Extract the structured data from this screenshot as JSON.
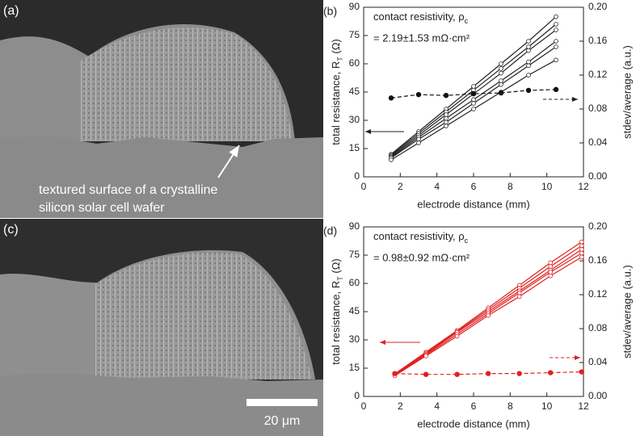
{
  "panels": [
    {
      "label": "(a)",
      "caption": [
        "textured surface of a crystalline",
        "silicon solar cell wafer"
      ]
    },
    {
      "label": "(c)",
      "scale_bar": "20 μm"
    }
  ],
  "chart_data": [
    {
      "type": "line",
      "label": "(b)",
      "annotation": [
        "contact resistivity, ρ",
        "c"
      ],
      "annotation2": "= 2.19±1.53 mΩ·cm²",
      "xlabel": "electrode distance (mm)",
      "ylabel": [
        "total resistance, R",
        "T",
        " (Ω)"
      ],
      "y2label": "stdev/average (a.u.)",
      "xlim": [
        0,
        12
      ],
      "xticks": [
        0,
        2,
        4,
        6,
        8,
        10,
        12
      ],
      "ylim": [
        0,
        90
      ],
      "yticks": [
        0,
        15,
        30,
        45,
        60,
        75,
        90
      ],
      "y2lim": [
        0,
        0.2
      ],
      "y2ticks": [
        {
          "value": 0,
          "label": "0.00"
        },
        {
          "value": 0.04,
          "label": "0.04"
        },
        {
          "value": 0.08,
          "label": "0.08"
        },
        {
          "value": 0.12,
          "label": "0.12"
        },
        {
          "value": 0.16,
          "label": "0.16"
        },
        {
          "value": 0.2,
          "label": "0.20"
        }
      ],
      "x": [
        1.5,
        3,
        4.5,
        6,
        7.5,
        9,
        10.5
      ],
      "series": [
        {
          "color": "#222222",
          "values": [
            12,
            24,
            36,
            48,
            60,
            72,
            85
          ]
        },
        {
          "color": "#222222",
          "values": [
            11.5,
            23,
            34.5,
            46,
            57.5,
            69,
            81
          ]
        },
        {
          "color": "#222222",
          "values": [
            11,
            22,
            33,
            44,
            55,
            67,
            78
          ]
        },
        {
          "color": "#222222",
          "values": [
            10.5,
            21,
            31,
            41,
            51,
            61,
            72
          ]
        },
        {
          "color": "#222222",
          "values": [
            10,
            20,
            29,
            39,
            49,
            59,
            69
          ]
        },
        {
          "color": "#222222",
          "values": [
            9,
            18,
            27,
            36,
            45,
            54,
            62
          ]
        },
        {
          "color": "#111111",
          "axis": "y2",
          "linestyle": "dashed",
          "values": [
            0.093,
            0.097,
            0.096,
            0.098,
            0.099,
            0.102,
            0.103
          ]
        }
      ]
    },
    {
      "type": "line",
      "label": "(d)",
      "annotation": [
        "contact resistivity, ρ",
        "c"
      ],
      "annotation2": "= 0.98±0.92 mΩ·cm²",
      "xlabel": "electrode distance (mm)",
      "ylabel": [
        "total resistance, R",
        "T",
        " (Ω)"
      ],
      "y2label": "stdev/average (a.u.)",
      "xlim": [
        0,
        12
      ],
      "xticks": [
        0,
        2,
        4,
        6,
        8,
        10,
        12
      ],
      "ylim": [
        0,
        90
      ],
      "yticks": [
        0,
        15,
        30,
        45,
        60,
        75,
        90
      ],
      "y2lim": [
        0,
        0.2
      ],
      "y2ticks": [
        {
          "value": 0,
          "label": "0.00"
        },
        {
          "value": 0.04,
          "label": "0.04"
        },
        {
          "value": 0.08,
          "label": "0.08"
        },
        {
          "value": 0.12,
          "label": "0.12"
        },
        {
          "value": 0.16,
          "label": "0.16"
        },
        {
          "value": 0.2,
          "label": "0.20"
        }
      ],
      "x": [
        1.7,
        3.4,
        5.1,
        6.8,
        8.5,
        10.2,
        11.9
      ],
      "series": [
        {
          "color": "#e02020",
          "values": [
            12,
            23.5,
            35,
            47,
            59,
            71,
            82
          ]
        },
        {
          "color": "#e02020",
          "values": [
            12,
            23,
            34.5,
            46,
            57.5,
            69,
            80
          ]
        },
        {
          "color": "#e02020",
          "values": [
            11.5,
            22.5,
            34,
            45,
            56,
            67,
            78
          ]
        },
        {
          "color": "#e02020",
          "values": [
            11.5,
            22,
            33,
            44,
            55,
            66,
            76
          ]
        },
        {
          "color": "#e02020",
          "values": [
            11,
            21.5,
            32,
            43,
            53,
            64,
            74
          ]
        },
        {
          "color": "#e02020",
          "axis": "y2",
          "linestyle": "dashed",
          "values": [
            0.027,
            0.026,
            0.026,
            0.027,
            0.027,
            0.028,
            0.029
          ]
        }
      ]
    }
  ]
}
